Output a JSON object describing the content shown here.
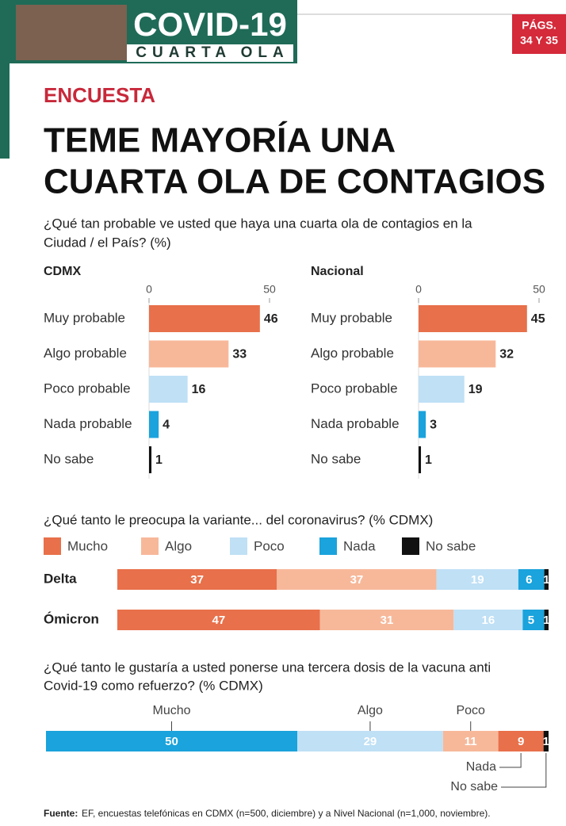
{
  "header": {
    "banner_title": "COVID-19",
    "banner_subtitle": "CUARTA OLA",
    "pages": [
      "PÁGS.",
      "34 Y 35"
    ],
    "section": "ENCUESTA",
    "headline": [
      "TEME MAYORÍA UNA",
      "CUARTA OLA DE CONTAGIOS"
    ],
    "question": [
      "¿Qué tan probable ve usted que haya una cuarta ola de contagios en la",
      "Ciudad / el País? (%)"
    ]
  },
  "chart_data": [
    {
      "type": "hbar",
      "title": "CDMX",
      "categories": [
        "Muy probable",
        "Algo probable",
        "Poco probable",
        "Nada probable",
        "No sabe"
      ],
      "values": [
        46,
        33,
        16,
        4,
        1
      ],
      "colors": [
        "#e8704a",
        "#f7b89a",
        "#bfe0f5",
        "#1aa3dc",
        "#111111"
      ],
      "xlim": [
        0,
        50
      ],
      "xticks": [
        0,
        50
      ]
    },
    {
      "type": "hbar",
      "title": "Nacional",
      "categories": [
        "Muy probable",
        "Algo probable",
        "Poco probable",
        "Nada probable",
        "No sabe"
      ],
      "values": [
        45,
        32,
        19,
        3,
        1
      ],
      "colors": [
        "#e8704a",
        "#f7b89a",
        "#bfe0f5",
        "#1aa3dc",
        "#111111"
      ],
      "xlim": [
        0,
        50
      ],
      "xticks": [
        0,
        50
      ]
    },
    {
      "type": "stacked",
      "title": "¿Qué tanto le preocupa la variante... del coronavirus? (% CDMX)",
      "categories": [
        "Delta",
        "Ómicron"
      ],
      "xlim": [
        0,
        100
      ],
      "series": [
        {
          "name": "Mucho",
          "color": "#e8704a",
          "values": [
            37,
            47
          ]
        },
        {
          "name": "Algo",
          "color": "#f7b89a",
          "values": [
            37,
            31
          ]
        },
        {
          "name": "Poco",
          "color": "#bfe0f5",
          "values": [
            19,
            16
          ]
        },
        {
          "name": "Nada",
          "color": "#1aa3dc",
          "values": [
            6,
            5
          ]
        },
        {
          "name": "No sabe",
          "color": "#111111",
          "values": [
            1,
            1
          ]
        }
      ]
    },
    {
      "type": "single-stack",
      "title": [
        "¿Qué tanto le gustaría a usted ponerse una tercera dosis de la vacuna anti",
        "Covid-19 como refuerzo? (% CDMX)"
      ],
      "categories": [
        "Mucho",
        "Algo",
        "Poco",
        "Nada",
        "No sabe"
      ],
      "values": [
        50,
        29,
        11,
        9,
        1
      ],
      "colors": [
        "#1aa3dc",
        "#bfe0f5",
        "#f7b89a",
        "#e8704a",
        "#111111"
      ],
      "xlim": [
        0,
        100
      ]
    }
  ],
  "footer": {
    "label": "Fuente:",
    "text": "EF, encuestas telefónicas en CDMX (n=500, diciembre) y a Nivel Nacional (n=1,000, noviembre)."
  }
}
